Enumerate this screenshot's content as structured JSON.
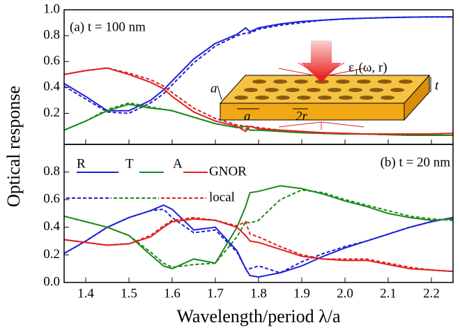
{
  "chart_data": [
    {
      "type": "line",
      "ylabel": "Optical response",
      "annotation": "(a) t = 100 nm",
      "inset_labels": [
        "ε₁(ω, r)",
        "a",
        "a",
        "2r",
        "t"
      ],
      "x": [
        1.35,
        1.4,
        1.45,
        1.5,
        1.55,
        1.58,
        1.6,
        1.65,
        1.7,
        1.75,
        1.77,
        1.78,
        1.8,
        1.85,
        1.9,
        1.95,
        2.0,
        2.05,
        2.1,
        2.15,
        2.2,
        2.25
      ],
      "xlim": [
        1.35,
        2.25
      ],
      "ylim": [
        -0.04,
        1.0
      ],
      "yticks": [
        0.2,
        0.4,
        0.6,
        0.8,
        {
          "value": 1,
          "label": "1.0"
        }
      ],
      "series": [
        {
          "color": "#1f1fd6",
          "dashed": false,
          "values": [
            0.43,
            0.33,
            0.22,
            0.22,
            0.3,
            0.38,
            0.45,
            0.62,
            0.74,
            0.81,
            0.86,
            0.83,
            0.86,
            0.89,
            0.91,
            0.92,
            0.93,
            0.935,
            0.94,
            0.943,
            0.945,
            0.945
          ]
        },
        {
          "color": "#1f1fd6",
          "dashed": true,
          "values": [
            0.41,
            0.31,
            0.21,
            0.2,
            0.28,
            0.35,
            0.42,
            0.59,
            0.72,
            0.8,
            0.82,
            0.82,
            0.85,
            0.88,
            0.9,
            0.92,
            0.93,
            0.935,
            0.94,
            0.943,
            0.945,
            0.945
          ]
        },
        {
          "color": "#1a8a1a",
          "dashed": false,
          "values": [
            0.07,
            0.14,
            0.22,
            0.27,
            0.24,
            0.23,
            0.22,
            0.17,
            0.12,
            0.09,
            0.1,
            0.07,
            0.07,
            0.06,
            0.05,
            0.045,
            0.04,
            0.04,
            0.035,
            0.03,
            0.03,
            0.03
          ]
        },
        {
          "color": "#1a8a1a",
          "dashed": true,
          "values": [
            0.07,
            0.14,
            0.23,
            0.28,
            0.25,
            0.23,
            0.22,
            0.17,
            0.12,
            0.09,
            0.08,
            0.07,
            0.07,
            0.06,
            0.05,
            0.045,
            0.04,
            0.04,
            0.035,
            0.03,
            0.03,
            0.03
          ]
        },
        {
          "color": "#e02020",
          "dashed": false,
          "values": [
            0.5,
            0.53,
            0.55,
            0.5,
            0.44,
            0.39,
            0.33,
            0.21,
            0.14,
            0.1,
            0.06,
            0.1,
            0.08,
            0.07,
            0.06,
            0.05,
            0.045,
            0.04,
            0.04,
            0.04,
            0.04,
            0.045
          ]
        },
        {
          "color": "#e02020",
          "dashed": true,
          "values": [
            0.5,
            0.53,
            0.55,
            0.51,
            0.46,
            0.41,
            0.36,
            0.24,
            0.16,
            0.11,
            0.1,
            0.1,
            0.09,
            0.07,
            0.06,
            0.05,
            0.045,
            0.04,
            0.04,
            0.04,
            0.04,
            0.045
          ]
        }
      ]
    },
    {
      "type": "line",
      "xlabel": "Wavelength/period λ/a",
      "annotation": "(b) t = 20 nm",
      "legend": {
        "labels": [
          "R",
          "T",
          "A"
        ],
        "styles": [
          "GNOR",
          "local"
        ]
      },
      "x": [
        1.35,
        1.4,
        1.45,
        1.5,
        1.55,
        1.58,
        1.6,
        1.65,
        1.7,
        1.75,
        1.77,
        1.78,
        1.8,
        1.85,
        1.9,
        1.95,
        2.0,
        2.05,
        2.1,
        2.15,
        2.2,
        2.25
      ],
      "xlim": [
        1.35,
        2.25
      ],
      "ylim": [
        0,
        1.0
      ],
      "xticks": [
        1.4,
        1.5,
        1.6,
        1.7,
        1.8,
        1.9,
        {
          "value": 2,
          "label": "2.0"
        },
        2.1,
        2.2
      ],
      "yticks": [
        {
          "value": 0,
          "label": "0.0"
        },
        0.2,
        0.4,
        0.6,
        0.8
      ],
      "series": [
        {
          "color": "#1f1fd6",
          "dashed": false,
          "values": [
            0.21,
            0.3,
            0.4,
            0.47,
            0.52,
            0.56,
            0.53,
            0.38,
            0.4,
            0.23,
            0.1,
            0.05,
            0.04,
            0.07,
            0.12,
            0.19,
            0.25,
            0.3,
            0.35,
            0.4,
            0.44,
            0.47
          ]
        },
        {
          "color": "#1f1fd6",
          "dashed": true,
          "values": [
            0.21,
            0.3,
            0.4,
            0.47,
            0.52,
            0.53,
            0.47,
            0.36,
            0.38,
            0.22,
            0.1,
            0.1,
            0.12,
            0.07,
            0.15,
            0.21,
            0.26,
            0.3,
            0.35,
            0.4,
            0.44,
            0.47
          ]
        },
        {
          "color": "#1a8a1a",
          "dashed": false,
          "values": [
            0.48,
            0.44,
            0.4,
            0.34,
            0.2,
            0.12,
            0.1,
            0.17,
            0.14,
            0.4,
            0.55,
            0.65,
            0.66,
            0.7,
            0.68,
            0.64,
            0.59,
            0.55,
            0.5,
            0.47,
            0.45,
            0.46
          ]
        },
        {
          "color": "#1a8a1a",
          "dashed": true,
          "values": [
            0.48,
            0.44,
            0.4,
            0.34,
            0.22,
            0.14,
            0.11,
            0.13,
            0.14,
            0.33,
            0.44,
            0.43,
            0.45,
            0.6,
            0.67,
            0.65,
            0.6,
            0.56,
            0.52,
            0.48,
            0.46,
            0.45
          ]
        },
        {
          "color": "#e02020",
          "dashed": false,
          "values": [
            0.31,
            0.29,
            0.27,
            0.28,
            0.33,
            0.4,
            0.44,
            0.46,
            0.45,
            0.4,
            0.34,
            0.3,
            0.29,
            0.24,
            0.19,
            0.17,
            0.16,
            0.16,
            0.13,
            0.1,
            0.09,
            0.08
          ]
        },
        {
          "color": "#e02020",
          "dashed": true,
          "values": [
            0.31,
            0.29,
            0.27,
            0.28,
            0.34,
            0.41,
            0.45,
            0.47,
            0.45,
            0.41,
            0.44,
            0.35,
            0.33,
            0.26,
            0.2,
            0.17,
            0.17,
            0.17,
            0.14,
            0.11,
            0.09,
            0.08
          ]
        }
      ]
    }
  ]
}
